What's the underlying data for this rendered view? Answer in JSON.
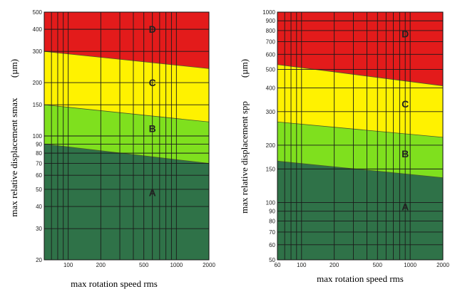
{
  "chart_data": [
    {
      "type": "area",
      "title": "",
      "xlabel": "max rotation speed rms",
      "ylabel": "max relative displacement smax",
      "yunit": "(µm)",
      "xscale": "log",
      "yscale": "log",
      "xlim": [
        60,
        2000
      ],
      "ylim": [
        20,
        500
      ],
      "x_ticks": [
        100,
        200,
        500,
        1000,
        2000
      ],
      "y_ticks": [
        20,
        30,
        40,
        50,
        60,
        70,
        80,
        90,
        100,
        150,
        200,
        300,
        400,
        500
      ],
      "x_grid": [
        60,
        70,
        80,
        90,
        100,
        200,
        300,
        400,
        500,
        600,
        700,
        800,
        900,
        1000,
        2000
      ],
      "y_grid": [
        20,
        30,
        40,
        50,
        60,
        70,
        80,
        90,
        100,
        150,
        200,
        300,
        400,
        500
      ],
      "grid": true,
      "boundaries": [
        {
          "zones": "A/B",
          "x": [
            60,
            2000
          ],
          "y": [
            90,
            70
          ]
        },
        {
          "zones": "B/C",
          "x": [
            60,
            2000
          ],
          "y": [
            150,
            120
          ]
        },
        {
          "zones": "C/D",
          "x": [
            60,
            2000
          ],
          "y": [
            300,
            240
          ]
        }
      ],
      "zones": [
        {
          "label": "A",
          "color": "#2f7248"
        },
        {
          "label": "B",
          "color": "#7fe01e"
        },
        {
          "label": "C",
          "color": "#fff200"
        },
        {
          "label": "D",
          "color": "#e31b1b"
        }
      ],
      "zone_label_points": [
        {
          "label": "A",
          "x": 600,
          "y": 48
        },
        {
          "label": "B",
          "x": 600,
          "y": 110
        },
        {
          "label": "C",
          "x": 600,
          "y": 200
        },
        {
          "label": "D",
          "x": 600,
          "y": 400
        }
      ]
    },
    {
      "type": "area",
      "title": "",
      "xlabel": "max rotation speed rms",
      "ylabel": "max relative displacement spp",
      "yunit": "(µm)",
      "xscale": "log",
      "yscale": "log",
      "xlim": [
        60,
        2000
      ],
      "ylim": [
        50,
        1000
      ],
      "x_ticks": [
        60,
        100,
        200,
        500,
        1000,
        2000
      ],
      "y_ticks": [
        50,
        60,
        70,
        80,
        90,
        100,
        150,
        200,
        300,
        400,
        500,
        600,
        700,
        800,
        900,
        1000
      ],
      "x_grid": [
        60,
        70,
        80,
        90,
        100,
        200,
        300,
        400,
        500,
        600,
        700,
        800,
        900,
        1000,
        2000
      ],
      "y_grid": [
        50,
        60,
        70,
        80,
        90,
        100,
        150,
        200,
        300,
        400,
        500,
        600,
        700,
        800,
        900,
        1000
      ],
      "grid": true,
      "boundaries": [
        {
          "zones": "A/B",
          "x": [
            60,
            2000
          ],
          "y": [
            165,
            135
          ]
        },
        {
          "zones": "B/C",
          "x": [
            60,
            2000
          ],
          "y": [
            265,
            220
          ]
        },
        {
          "zones": "C/D",
          "x": [
            60,
            2000
          ],
          "y": [
            530,
            410
          ]
        }
      ],
      "zones": [
        {
          "label": "A",
          "color": "#2f7248"
        },
        {
          "label": "B",
          "color": "#7fe01e"
        },
        {
          "label": "C",
          "color": "#fff200"
        },
        {
          "label": "D",
          "color": "#e31b1b"
        }
      ],
      "zone_label_points": [
        {
          "label": "A",
          "x": 900,
          "y": 95
        },
        {
          "label": "B",
          "x": 900,
          "y": 180
        },
        {
          "label": "C",
          "x": 900,
          "y": 330
        },
        {
          "label": "D",
          "x": 900,
          "y": 770
        }
      ]
    }
  ]
}
